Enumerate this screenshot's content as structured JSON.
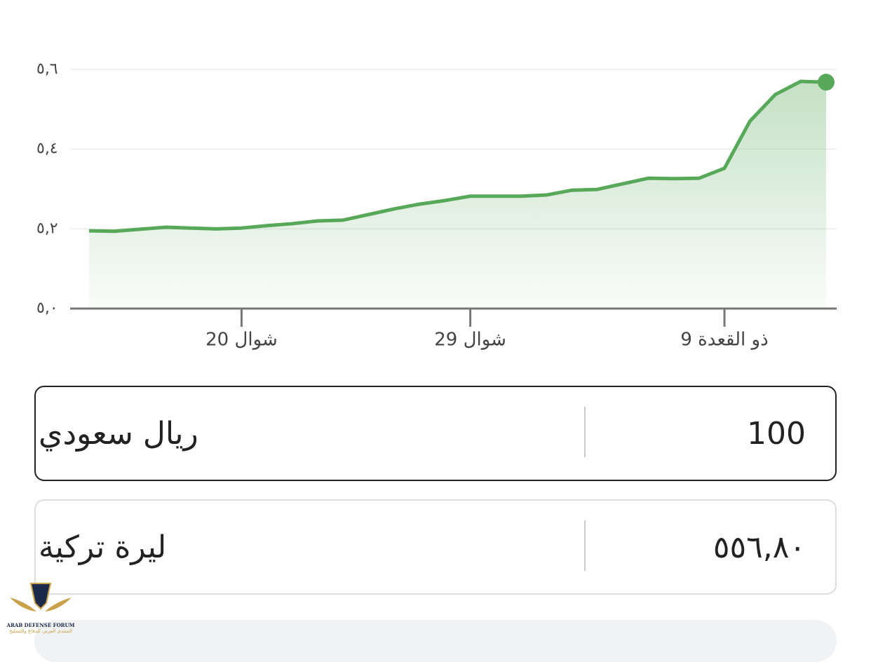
{
  "chart_data": {
    "type": "line",
    "categories": [
      null,
      null,
      null,
      null,
      null,
      null,
      "20 شوال",
      null,
      null,
      null,
      null,
      null,
      null,
      null,
      null,
      "29 شوال",
      null,
      null,
      null,
      null,
      null,
      null,
      null,
      null,
      null,
      "9 ذو القعدة",
      null,
      null,
      null,
      null
    ],
    "series": [
      {
        "color": "#58a85a",
        "values": [
          5.195,
          5.194,
          5.199,
          5.204,
          5.202,
          5.2,
          5.202,
          5.208,
          5.213,
          5.22,
          5.222,
          5.236,
          5.25,
          5.262,
          5.271,
          5.282,
          5.282,
          5.282,
          5.285,
          5.297,
          5.299,
          5.313,
          5.327,
          5.326,
          5.327,
          5.352,
          5.47,
          5.537,
          5.57,
          5.568
        ]
      }
    ],
    "ylim": [
      5.0,
      5.6
    ],
    "yticks": [
      {
        "value": 5.0,
        "label": "٥,٠"
      },
      {
        "value": 5.2,
        "label": "٥,٢"
      },
      {
        "value": 5.4,
        "label": "٥,٤"
      },
      {
        "value": 5.6,
        "label": "٥,٦"
      }
    ],
    "grid": true
  },
  "converter": {
    "from": {
      "amount": "100",
      "currency": "ريال سعودي"
    },
    "to": {
      "amount": "٥٥٦,٨٠",
      "currency": "ليرة تركية"
    }
  },
  "watermark": {
    "title": "ARAB DEFENSE FORUM",
    "subtitle": "المنتدى العربي للدفاع والتسليح"
  }
}
